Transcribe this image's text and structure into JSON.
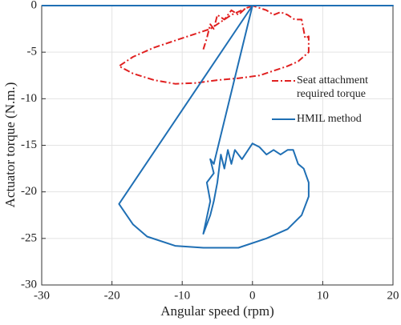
{
  "chart_data": {
    "type": "line",
    "xlabel": "Angular speed (rpm)",
    "ylabel": "Actuator torque (N.m.)",
    "xlim": [
      -30,
      20
    ],
    "ylim": [
      -30,
      0
    ],
    "xticks": [
      -30,
      -20,
      -10,
      0,
      10,
      20
    ],
    "yticks": [
      -30,
      -25,
      -20,
      -15,
      -10,
      -5,
      0
    ],
    "grid": true,
    "series": [
      {
        "name": "Seat attachment required torque",
        "color": "#e02020",
        "dash": "dashdot",
        "x": [
          -7,
          -6.5,
          -6,
          -5.5,
          -5,
          -4,
          -3,
          -2,
          -1,
          0,
          2,
          3,
          4,
          5,
          6,
          7,
          7.5,
          8,
          8,
          6.5,
          5,
          3,
          1,
          -2,
          -5,
          -8,
          -11,
          -14,
          -17,
          -19,
          -17,
          -14,
          -10,
          -6,
          -3,
          0
        ],
        "values": [
          -4.7,
          -3.5,
          -2,
          -2.5,
          -1,
          -1.5,
          -0.5,
          -1,
          -0.3,
          0,
          -0.5,
          -1,
          -0.7,
          -1,
          -1.5,
          -1.5,
          -3.5,
          -3.3,
          -5,
          -6,
          -6.5,
          -7,
          -7.5,
          -7.8,
          -8,
          -8.3,
          -8.4,
          -8,
          -7.3,
          -6.5,
          -5.5,
          -4.5,
          -3.5,
          -2.5,
          -1,
          0
        ]
      },
      {
        "name": "HMIL method",
        "color": "#1f6fb4",
        "dash": "solid",
        "x": [
          -30,
          20,
          0,
          -19,
          -17,
          -15,
          -11,
          -7,
          -2,
          2,
          5,
          7,
          8,
          8,
          7.3,
          6.5,
          5.8,
          5,
          4,
          3,
          2,
          1,
          0,
          -1.5,
          -2.5,
          -3,
          -3.5,
          -4,
          -4.5,
          -5,
          -5.5,
          -6,
          -7,
          -6,
          -6.5,
          -5.5,
          -6,
          -5.5,
          0
        ],
        "values": [
          0,
          0,
          0,
          -21.3,
          -23.5,
          -24.8,
          -25.8,
          -26,
          -26,
          -25,
          -24,
          -22.5,
          -20.5,
          -19,
          -17.5,
          -17,
          -15.5,
          -15.5,
          -16,
          -15.5,
          -16,
          -15.2,
          -14.8,
          -16.5,
          -15.5,
          -17,
          -15.5,
          -17.5,
          -16,
          -19,
          -21,
          -22.5,
          -24.5,
          -21,
          -19,
          -18,
          -16.5,
          -17,
          0
        ]
      }
    ]
  }
}
